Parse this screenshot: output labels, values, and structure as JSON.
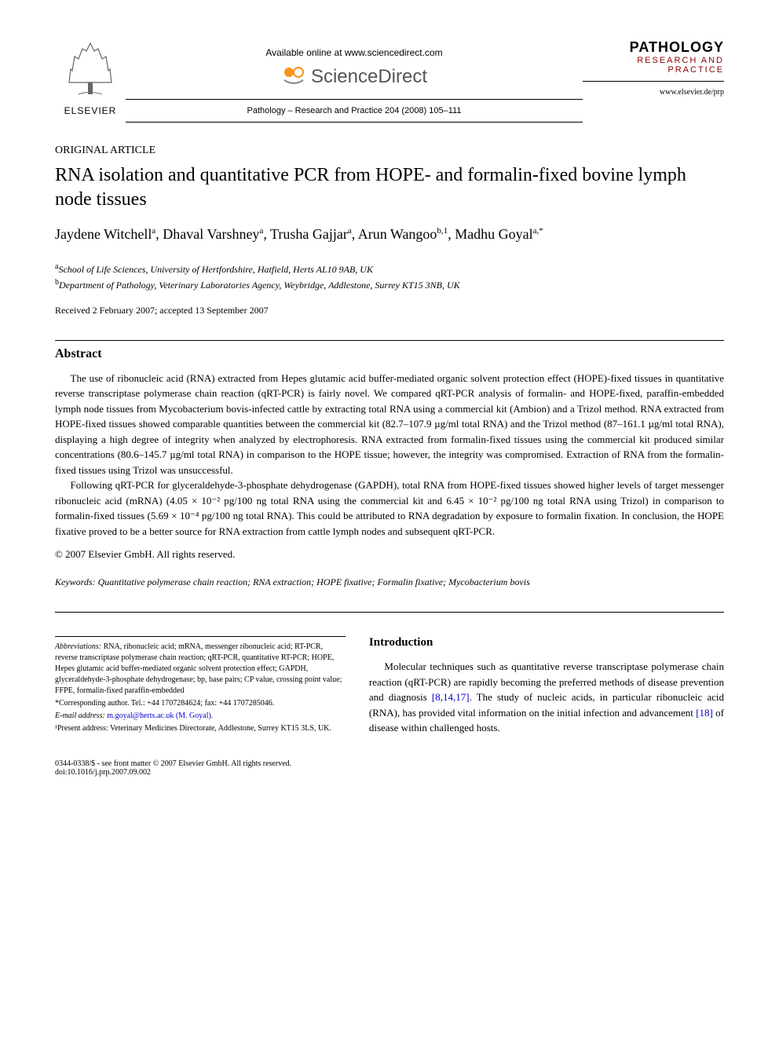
{
  "header": {
    "available_text": "Available online at www.sciencedirect.com",
    "sd_text": "ScienceDirect",
    "citation": "Pathology – Research and Practice 204 (2008) 105–111",
    "elsevier_label": "ELSEVIER",
    "journal_name": "PATHOLOGY",
    "journal_sub": "RESEARCH AND PRACTICE",
    "journal_url": "www.elsevier.de/prp"
  },
  "article": {
    "type": "ORIGINAL ARTICLE",
    "title": "RNA isolation and quantitative PCR from HOPE- and formalin-fixed bovine lymph node tissues",
    "authors_html": "Jaydene Witchell<sup>a</sup>, Dhaval Varshney<sup>a</sup>, Trusha Gajjar<sup>a</sup>, Arun Wangoo<sup>b,1</sup>, Madhu Goyal<sup>a,*</sup>",
    "affil_a": "School of Life Sciences, University of Hertfordshire, Hatfield, Herts AL10 9AB, UK",
    "affil_b": "Department of Pathology, Veterinary Laboratories Agency, Weybridge, Addlestone, Surrey KT15 3NB, UK",
    "dates": "Received 2 February 2007; accepted 13 September 2007"
  },
  "abstract": {
    "heading": "Abstract",
    "p1": "The use of ribonucleic acid (RNA) extracted from Hepes glutamic acid buffer-mediated organic solvent protection effect (HOPE)-fixed tissues in quantitative reverse transcriptase polymerase chain reaction (qRT-PCR) is fairly novel. We compared qRT-PCR analysis of formalin- and HOPE-fixed, paraffin-embedded lymph node tissues from Mycobacterium bovis-infected cattle by extracting total RNA using a commercial kit (Ambion) and a Trizol method. RNA extracted from HOPE-fixed tissues showed comparable quantities between the commercial kit (82.7–107.9 µg/ml total RNA) and the Trizol method (87–161.1 µg/ml total RNA), displaying a high degree of integrity when analyzed by electrophoresis. RNA extracted from formalin-fixed tissues using the commercial kit produced similar concentrations (80.6–145.7 µg/ml total RNA) in comparison to the HOPE tissue; however, the integrity was compromised. Extraction of RNA from the formalin-fixed tissues using Trizol was unsuccessful.",
    "p2": "Following qRT-PCR for glyceraldehyde-3-phosphate dehydrogenase (GAPDH), total RNA from HOPE-fixed tissues showed higher levels of target messenger ribonucleic acid (mRNA) (4.05 × 10⁻² pg/100 ng total RNA using the commercial kit and 6.45 × 10⁻² pg/100 ng total RNA using Trizol) in comparison to formalin-fixed tissues (5.69 × 10⁻⁴ pg/100 ng total RNA). This could be attributed to RNA degradation by exposure to formalin fixation. In conclusion, the HOPE fixative proved to be a better source for RNA extraction from cattle lymph nodes and subsequent qRT-PCR.",
    "copyright": "© 2007 Elsevier GmbH. All rights reserved.",
    "keywords_label": "Keywords:",
    "keywords": " Quantitative polymerase chain reaction; RNA extraction; HOPE fixative; Formalin fixative; Mycobacterium bovis"
  },
  "footnotes": {
    "abbrev_label": "Abbreviations:",
    "abbrev": " RNA, ribonucleic acid; mRNA, messenger ribonucleic acid; RT-PCR, reverse transcriptase polymerase chain reaction; qRT-PCR, quantitative RT-PCR; HOPE, Hepes glutamic acid buffer-mediated organic solvent protection effect; GAPDH, glyceraldehyde-3-phosphate dehydrogenase; bp, base pairs; CP value, crossing point value; FFPE, formalin-fixed paraffin-embedded",
    "corr": "*Corresponding author. Tel.: +44 1707284624; fax: +44 1707285046.",
    "email_label": "E-mail address:",
    "email": " m.goyal@herts.ac.uk (M. Goyal).",
    "addr1": "¹Present address: Veterinary Medicines Directorate, Addlestone, Surrey KT15 3LS, UK."
  },
  "intro": {
    "heading": "Introduction",
    "body_pre": "Molecular techniques such as quantitative reverse transcriptase polymerase chain reaction (qRT-PCR) are rapidly becoming the preferred methods of disease prevention and diagnosis ",
    "ref1": "[8,14,17]",
    "body_mid": ". The study of nucleic acids, in particular ribonucleic acid (RNA), has provided vital information on the initial infection and advancement ",
    "ref2": "[18]",
    "body_post": " of disease within challenged hosts."
  },
  "footer": {
    "line1": "0344-0338/$ - see front matter © 2007 Elsevier GmbH. All rights reserved.",
    "line2": "doi:10.1016/j.prp.2007.09.002"
  },
  "colors": {
    "accent_orange": "#f7931e",
    "journal_red": "#8b0000",
    "link_blue": "#0000cc"
  }
}
